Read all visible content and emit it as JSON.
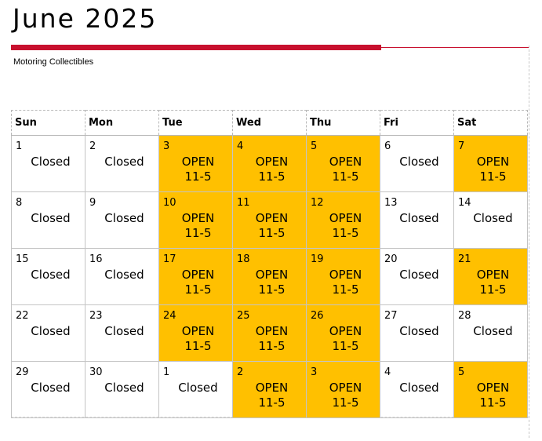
{
  "header": {
    "title": "June 2025",
    "subtitle": "Motoring Collectibles"
  },
  "colors": {
    "accent_rule": "#c8102e",
    "open_fill": "#ffc000"
  },
  "calendar": {
    "weekdays": [
      "Sun",
      "Mon",
      "Tue",
      "Wed",
      "Thu",
      "Fri",
      "Sat"
    ],
    "labels": {
      "closed": "Closed",
      "open": "OPEN",
      "hours": "11-5"
    },
    "weeks": [
      [
        {
          "day": "1",
          "status": "closed"
        },
        {
          "day": "2",
          "status": "closed"
        },
        {
          "day": "3",
          "status": "open"
        },
        {
          "day": "4",
          "status": "open"
        },
        {
          "day": "5",
          "status": "open"
        },
        {
          "day": "6",
          "status": "closed"
        },
        {
          "day": "7",
          "status": "open"
        }
      ],
      [
        {
          "day": "8",
          "status": "closed"
        },
        {
          "day": "9",
          "status": "closed"
        },
        {
          "day": "10",
          "status": "open"
        },
        {
          "day": "11",
          "status": "open"
        },
        {
          "day": "12",
          "status": "open"
        },
        {
          "day": "13",
          "status": "closed"
        },
        {
          "day": "14",
          "status": "closed"
        }
      ],
      [
        {
          "day": "15",
          "status": "closed"
        },
        {
          "day": "16",
          "status": "closed"
        },
        {
          "day": "17",
          "status": "open"
        },
        {
          "day": "18",
          "status": "open"
        },
        {
          "day": "19",
          "status": "open"
        },
        {
          "day": "20",
          "status": "closed"
        },
        {
          "day": "21",
          "status": "open"
        }
      ],
      [
        {
          "day": "22",
          "status": "closed"
        },
        {
          "day": "23",
          "status": "closed"
        },
        {
          "day": "24",
          "status": "open"
        },
        {
          "day": "25",
          "status": "open"
        },
        {
          "day": "26",
          "status": "open"
        },
        {
          "day": "27",
          "status": "closed"
        },
        {
          "day": "28",
          "status": "closed"
        }
      ],
      [
        {
          "day": "29",
          "status": "closed"
        },
        {
          "day": "30",
          "status": "closed"
        },
        {
          "day": "1",
          "status": "closed"
        },
        {
          "day": "2",
          "status": "open"
        },
        {
          "day": "3",
          "status": "open"
        },
        {
          "day": "4",
          "status": "closed"
        },
        {
          "day": "5",
          "status": "open"
        }
      ]
    ]
  }
}
